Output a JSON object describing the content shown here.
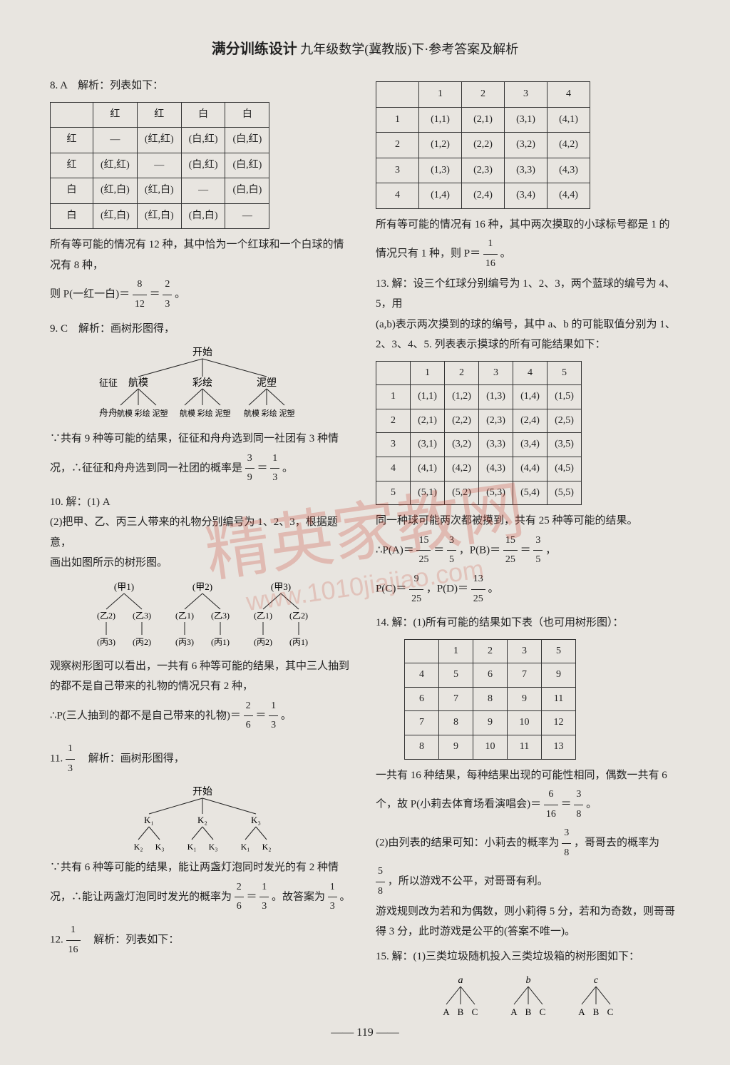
{
  "header": {
    "title_bold": "满分训练设计",
    "title_rest": "九年级数学(冀教版)下·参考答案及解析"
  },
  "left": {
    "q8": {
      "label": "8. A　解析：列表如下：",
      "table": {
        "headers": [
          "",
          "红",
          "红",
          "白",
          "白"
        ],
        "rows": [
          [
            "红",
            "—",
            "(红,红)",
            "(白,红)",
            "(白,红)"
          ],
          [
            "红",
            "(红,红)",
            "—",
            "(白,红)",
            "(白,红)"
          ],
          [
            "白",
            "(红,白)",
            "(红,白)",
            "—",
            "(白,白)"
          ],
          [
            "白",
            "(红,白)",
            "(红,白)",
            "(白,白)",
            "—"
          ]
        ]
      },
      "line1": "所有等可能的情况有 12 种，其中恰为一个红球和一个白球的情",
      "line2": "况有 8 种，",
      "line3_pre": "则 P(一红一白)＝",
      "frac1_n": "8",
      "frac1_d": "12",
      "eq": "＝",
      "frac2_n": "2",
      "frac2_d": "3",
      "period": "。"
    },
    "q9": {
      "label": "9. C　解析：画树形图得，",
      "tree_top": "开始",
      "row1_label": "征征",
      "row1": [
        "航模",
        "彩绘",
        "泥塑"
      ],
      "row2_label": "舟舟",
      "row2_group": "航模 彩绘 泥塑　航模 彩绘 泥塑　航模 彩绘 泥塑",
      "line1": "∵共有 9 种等可能的结果，征征和舟舟选到同一社团有 3 种情",
      "line2_pre": "况，∴征征和舟舟选到同一社团的概率是",
      "f1n": "3",
      "f1d": "9",
      "eq": "＝",
      "f2n": "1",
      "f2d": "3",
      "period": "。"
    },
    "q10": {
      "label": "10. 解：(1) A",
      "line1": "(2)把甲、乙、丙三人带来的礼物分别编号为 1、2、3，根据题意，",
      "line2": "画出如图所示的树形图。",
      "tree_r1": "(甲1)　　　(甲2)　　　(甲3)",
      "tree_r2": "(乙2)　(乙3)　(乙1)　(乙3)　(乙1)　(乙2)",
      "tree_r3": "(丙3)　(丙2)　(丙3)　(丙1)　(丙2)　(丙1)",
      "line3": "观察树形图可以看出，一共有 6 种等可能的结果，其中三人抽到",
      "line4": "的都不是自己带来的礼物的情况只有 2 种，",
      "line5_pre": "∴P(三人抽到的都不是自己带来的礼物)＝",
      "f1n": "2",
      "f1d": "6",
      "eq": "＝",
      "f2n": "1",
      "f2d": "3",
      "period": "。"
    },
    "q11": {
      "label_pre": "11. ",
      "fn": "1",
      "fd": "3",
      "label_post": "　解析：画树形图得，",
      "tree_top": "开始",
      "row1": "K₁　　K₂　　K₃",
      "row2": "K₂　K₃　K₁　K₃　K₁　K₂",
      "line1": "∵共有 6 种等可能的结果，能让两盏灯泡同时发光的有 2 种情",
      "line2_pre": "况，∴能让两盏灯泡同时发光的概率为",
      "f1n": "2",
      "f1d": "6",
      "eq": "＝",
      "f2n": "1",
      "f2d": "3",
      "line2_post": "。故答案为",
      "f3n": "1",
      "f3d": "3",
      "period": "。"
    },
    "q12": {
      "label_pre": "12. ",
      "fn": "1",
      "fd": "16",
      "label_post": "　解析：列表如下："
    }
  },
  "right": {
    "table12": {
      "headers": [
        "",
        "1",
        "2",
        "3",
        "4"
      ],
      "rows": [
        [
          "1",
          "(1,1)",
          "(2,1)",
          "(3,1)",
          "(4,1)"
        ],
        [
          "2",
          "(1,2)",
          "(2,2)",
          "(3,2)",
          "(4,2)"
        ],
        [
          "3",
          "(1,3)",
          "(2,3)",
          "(3,3)",
          "(4,3)"
        ],
        [
          "4",
          "(1,4)",
          "(2,4)",
          "(3,4)",
          "(4,4)"
        ]
      ]
    },
    "t12_line1": "所有等可能的情况有 16 种，其中两次摸取的小球标号都是 1 的",
    "t12_line2_pre": "情况只有 1 种，则 P＝",
    "t12_fn": "1",
    "t12_fd": "16",
    "t12_period": "。",
    "q13": {
      "label": "13. 解：设三个红球分别编号为 1、2、3，两个蓝球的编号为 4、5，用",
      "line1": "(a,b)表示两次摸到的球的编号，其中 a、b 的可能取值分别为 1、",
      "line2": "2、3、4、5. 列表表示摸球的所有可能结果如下：",
      "table": {
        "headers": [
          "",
          "1",
          "2",
          "3",
          "4",
          "5"
        ],
        "rows": [
          [
            "1",
            "(1,1)",
            "(1,2)",
            "(1,3)",
            "(1,4)",
            "(1,5)"
          ],
          [
            "2",
            "(2,1)",
            "(2,2)",
            "(2,3)",
            "(2,4)",
            "(2,5)"
          ],
          [
            "3",
            "(3,1)",
            "(3,2)",
            "(3,3)",
            "(3,4)",
            "(3,5)"
          ],
          [
            "4",
            "(4,1)",
            "(4,2)",
            "(4,3)",
            "(4,4)",
            "(4,5)"
          ],
          [
            "5",
            "(5,1)",
            "(5,2)",
            "(5,3)",
            "(5,4)",
            "(5,5)"
          ]
        ]
      },
      "line3": "同一种球可能两次都被摸到，共有 25 种等可能的结果。",
      "pa_pre": "∴P(A)＝",
      "pa1n": "15",
      "pa1d": "25",
      "eq": "＝",
      "pa2n": "3",
      "pa2d": "5",
      "pb_pre": "，P(B)＝",
      "pb1n": "15",
      "pb1d": "25",
      "pb2n": "3",
      "pb2d": "5",
      "comma": "，",
      "pc_pre": "P(C)＝",
      "pc1n": "9",
      "pc1d": "25",
      "pd_pre": "，P(D)＝",
      "pd1n": "13",
      "pd1d": "25",
      "period": "。"
    },
    "q14": {
      "label": "14. 解：(1)所有可能的结果如下表（也可用树形图）：",
      "table": {
        "headers": [
          "",
          "1",
          "2",
          "3",
          "5"
        ],
        "rows": [
          [
            "4",
            "5",
            "6",
            "7",
            "9"
          ],
          [
            "6",
            "7",
            "8",
            "9",
            "11"
          ],
          [
            "7",
            "8",
            "9",
            "10",
            "12"
          ],
          [
            "8",
            "9",
            "10",
            "11",
            "13"
          ]
        ]
      },
      "line1": "一共有 16 种结果，每种结果出现的可能性相同，偶数一共有 6",
      "line2_pre": "个，故 P(小莉去体育场看演唱会)＝",
      "f1n": "6",
      "f1d": "16",
      "eq": "＝",
      "f2n": "3",
      "f2d": "8",
      "period": "。",
      "line3_pre": "(2)由列表的结果可知：小莉去的概率为",
      "f3n": "3",
      "f3d": "8",
      "line3_post": "，哥哥去的概率为",
      "f4n": "5",
      "f4d": "8",
      "line4": "，所以游戏不公平，对哥哥有利。",
      "line5": "游戏规则改为若和为偶数，则小莉得 5 分，若和为奇数，则哥哥",
      "line6": "得 3 分，此时游戏是公平的(答案不唯一)。"
    },
    "q15": {
      "label": "15. 解：(1)三类垃圾随机投入三类垃圾箱的树形图如下：",
      "tree_r1": "a　　　b　　　c",
      "tree_r2": "A  B  C　A  B  C　A  B  C"
    }
  },
  "page_num": "119",
  "watermark": "精英家教网",
  "watermark_url": "www.1010jiajiao.com",
  "colors": {
    "bg": "#e8e5e0",
    "text": "#222222",
    "border": "#333333",
    "watermark": "rgba(200,60,40,0.25)"
  }
}
